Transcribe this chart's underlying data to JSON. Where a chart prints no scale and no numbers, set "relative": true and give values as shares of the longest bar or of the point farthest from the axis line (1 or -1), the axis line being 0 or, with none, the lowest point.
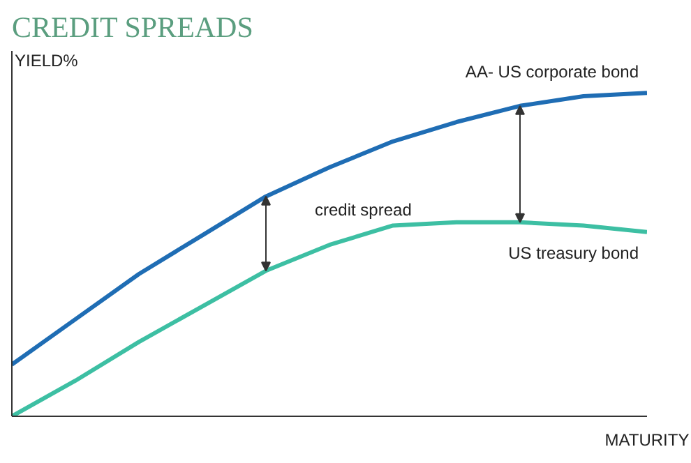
{
  "chart_data": {
    "type": "line",
    "title": "CREDIT SPREADS",
    "ylabel": "YIELD%",
    "xlabel": "MATURITY",
    "relative": true,
    "categories": [
      null,
      null,
      null,
      null,
      null,
      null,
      null,
      null,
      null,
      null,
      null
    ],
    "series": [
      {
        "name": "AA- US corporate bond",
        "color": "#1f6db4",
        "values": [
          0.16,
          0.3,
          0.44,
          0.56,
          0.68,
          0.77,
          0.85,
          0.91,
          0.96,
          0.99,
          1.0
        ]
      },
      {
        "name": "US treasury bond",
        "color": "#3dbfa3",
        "values": [
          0,
          0.11,
          0.23,
          0.34,
          0.45,
          0.53,
          0.59,
          0.6,
          0.6,
          0.59,
          0.57
        ]
      }
    ],
    "annotations": [
      "credit spread"
    ],
    "grid": false,
    "legend": false,
    "marker": "none",
    "line_style": "solid"
  }
}
